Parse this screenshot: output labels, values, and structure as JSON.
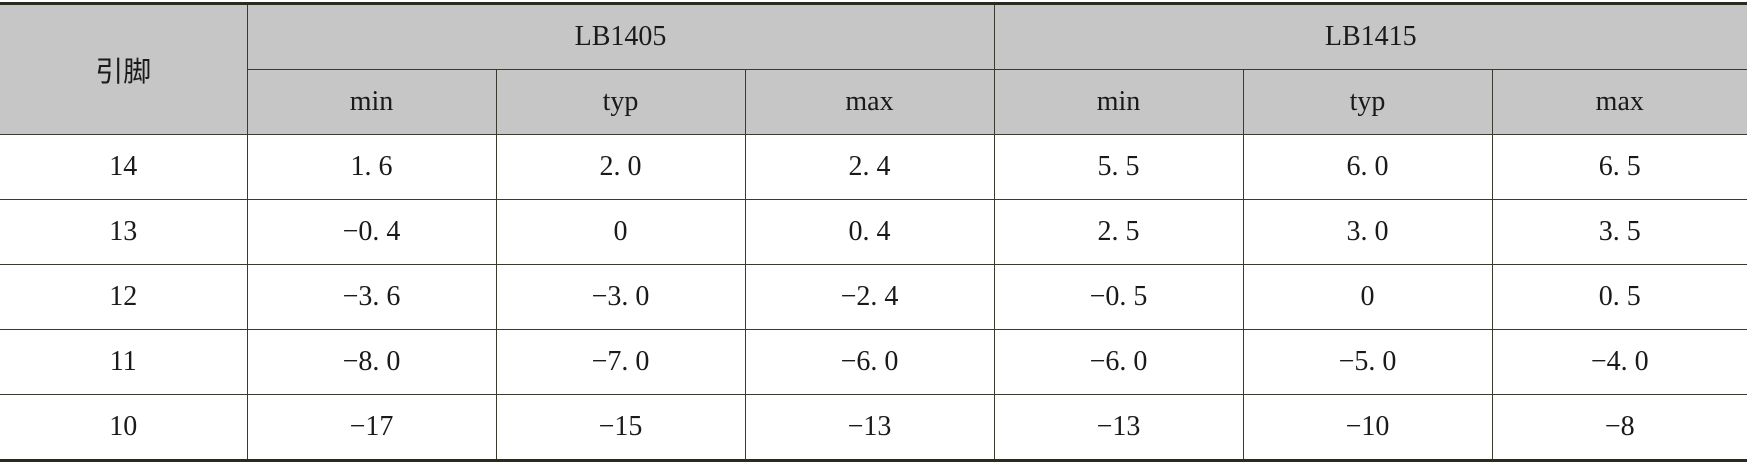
{
  "table": {
    "corner": "引脚",
    "groups": [
      "LB1405",
      "LB1415"
    ],
    "subheaders": [
      "min",
      "typ",
      "max",
      "min",
      "typ",
      "max"
    ],
    "rows": [
      [
        "14",
        "1. 6",
        "2. 0",
        "2. 4",
        "5. 5",
        "6. 0",
        "6. 5"
      ],
      [
        "13",
        "−0. 4",
        "0",
        "0. 4",
        "2. 5",
        "3. 0",
        "3. 5"
      ],
      [
        "12",
        "−3. 6",
        "−3. 0",
        "−2. 4",
        "−0. 5",
        "0",
        "0. 5"
      ],
      [
        "11",
        "−8. 0",
        "−7. 0",
        "−6. 0",
        "−6. 0",
        "−5. 0",
        "−4. 0"
      ],
      [
        "10",
        "−17",
        "−15",
        "−13",
        "−13",
        "−10",
        "−8"
      ]
    ]
  }
}
